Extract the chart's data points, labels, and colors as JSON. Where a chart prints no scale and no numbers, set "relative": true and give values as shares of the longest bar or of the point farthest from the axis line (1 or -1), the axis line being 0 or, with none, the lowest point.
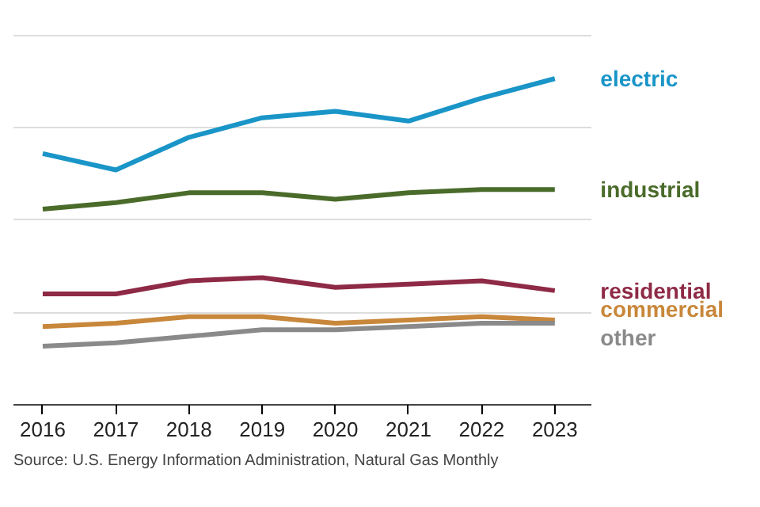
{
  "chart_data": {
    "type": "line",
    "relative": true,
    "grid": "y",
    "legend": false,
    "marker": "none",
    "line_style": "solid",
    "x": [
      2016,
      2017,
      2018,
      2019,
      2020,
      2021,
      2022,
      2023
    ],
    "xlim": [
      2015.6,
      2023.5
    ],
    "xticks": [
      2016,
      2017,
      2018,
      2019,
      2020,
      2021,
      2022,
      2023
    ],
    "series": [
      {
        "name": "electric",
        "color": "#1a95c8",
        "values": [
          0.77,
          0.72,
          0.82,
          0.88,
          0.9,
          0.87,
          0.94,
          1
        ]
      },
      {
        "name": "industrial",
        "color": "#4a6b2a",
        "values": [
          0.6,
          0.62,
          0.65,
          0.65,
          0.63,
          0.65,
          0.66,
          0.66
        ]
      },
      {
        "name": "residential",
        "color": "#8e2a45",
        "values": [
          0.34,
          0.34,
          0.38,
          0.39,
          0.36,
          0.37,
          0.38,
          0.35
        ]
      },
      {
        "name": "commercial",
        "color": "#c8873a",
        "values": [
          0.24,
          0.25,
          0.27,
          0.27,
          0.25,
          0.26,
          0.27,
          0.26
        ]
      },
      {
        "name": "other",
        "color": "#8a8a8a",
        "values": [
          0.18,
          0.19,
          0.21,
          0.23,
          0.23,
          0.24,
          0.25,
          0.25
        ]
      }
    ],
    "annotations": [
      "Source: U.S. Energy Information Administration, Natural Gas Monthly"
    ]
  }
}
